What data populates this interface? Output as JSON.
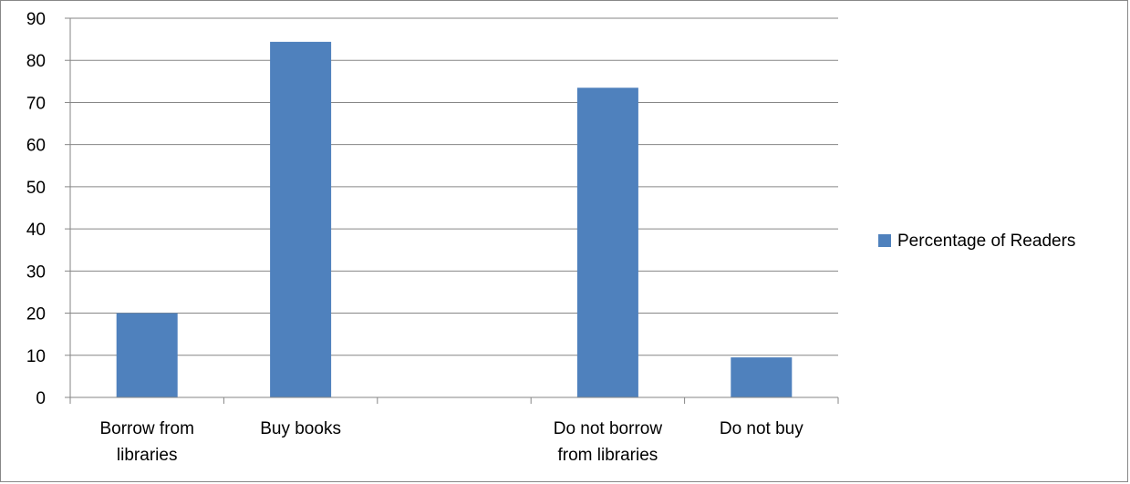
{
  "chart_data": {
    "type": "bar",
    "title": "",
    "xlabel": "",
    "ylabel": "",
    "categories": [
      [
        "Borrow from",
        "libraries"
      ],
      [
        "Buy books"
      ],
      [],
      [
        "Do not borrow",
        "from libraries"
      ],
      [
        "Do not buy"
      ]
    ],
    "series": [
      {
        "name": "Percentage of Readers",
        "values": [
          20,
          84.4,
          null,
          73.5,
          9.5
        ],
        "color": "#4f81bd"
      }
    ],
    "ylim": [
      0,
      90
    ],
    "yticks": [
      0,
      10,
      20,
      30,
      40,
      50,
      60,
      70,
      80,
      90
    ],
    "grid": true,
    "legend": "right"
  }
}
